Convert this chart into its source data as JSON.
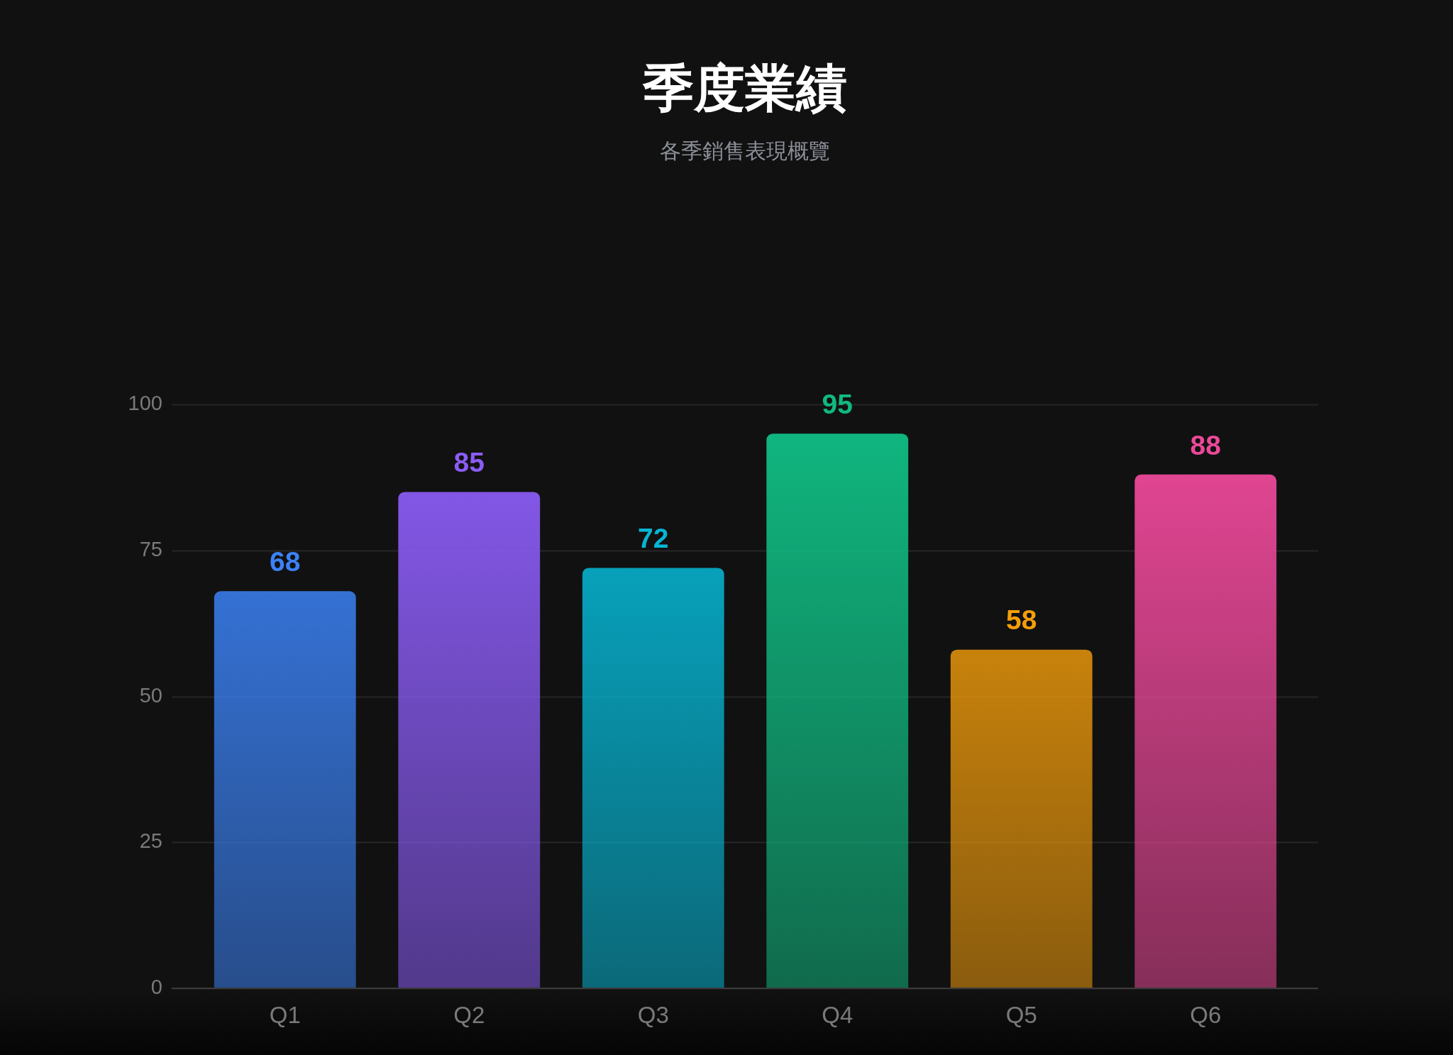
{
  "chart_data": {
    "type": "bar",
    "title": "季度業績",
    "subtitle": "各季銷售表現概覽",
    "categories": [
      "Q1",
      "Q2",
      "Q3",
      "Q4",
      "Q5",
      "Q6"
    ],
    "values": [
      68,
      85,
      72,
      95,
      58,
      88
    ],
    "colors": [
      "#3b82f6",
      "#8b5cf6",
      "#06b6d4",
      "#10b981",
      "#f59e0b",
      "#ec4899"
    ],
    "ylim": [
      0,
      100
    ],
    "yticks": [
      0,
      25,
      50,
      75,
      100
    ],
    "grid": "y",
    "data_labels": true
  }
}
